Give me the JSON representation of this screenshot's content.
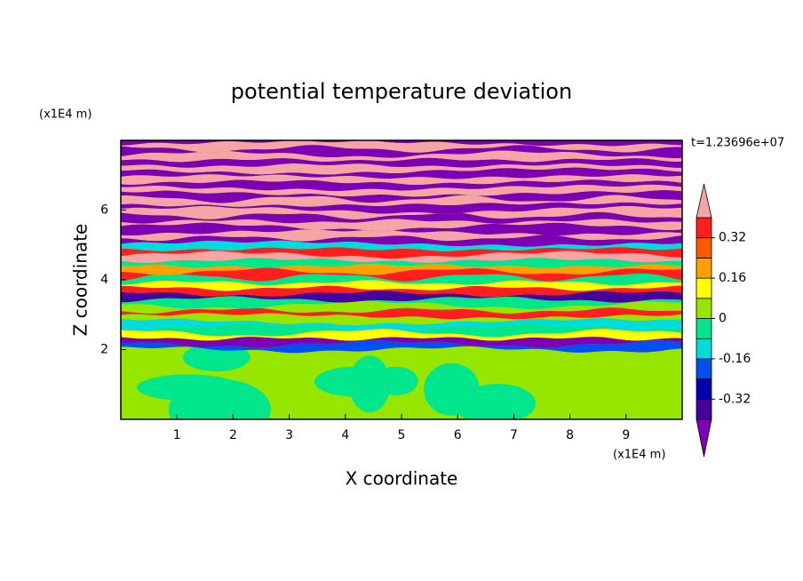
{
  "chart_data": {
    "type": "contour",
    "title": "potential temperature deviation",
    "xlabel": "X coordinate",
    "ylabel": "Z coordinate",
    "xunit": "(x1E4 m)",
    "yunit": "(x1E4 m)",
    "annotation": "t=1.23696e+07",
    "xlim": [
      0,
      10
    ],
    "ylim": [
      0,
      8
    ],
    "xticks": [
      1,
      2,
      3,
      4,
      5,
      6,
      7,
      8,
      9
    ],
    "yticks": [
      2,
      4,
      6
    ],
    "colorbar": {
      "levels": [
        -0.4,
        -0.32,
        -0.24,
        -0.16,
        -0.08,
        0,
        0.08,
        0.16,
        0.24,
        0.32,
        0.4
      ],
      "ticks": [
        -0.32,
        -0.16,
        0,
        0.16,
        0.32
      ],
      "under_color": "#7d00b4",
      "over_color": "#f5a5a5",
      "colors": [
        "#46009b",
        "#0000b4",
        "#0050f0",
        "#00dcdc",
        "#00e68c",
        "#96e600",
        "#ffff00",
        "#ffa000",
        "#ff5a00",
        "#ff1e1e"
      ]
    }
  }
}
